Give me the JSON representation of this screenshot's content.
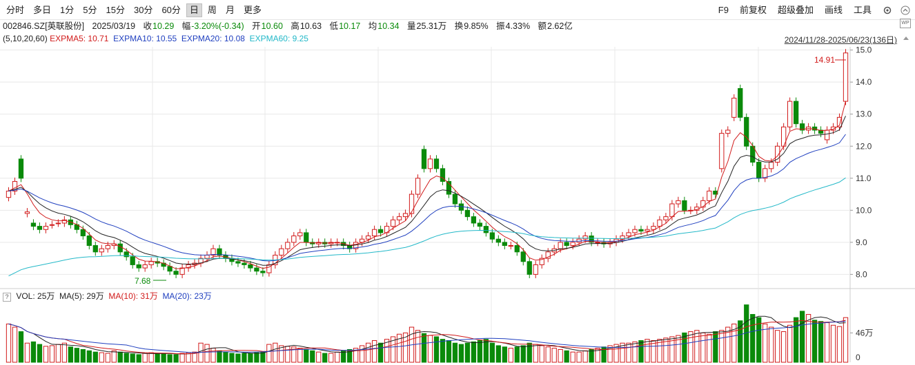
{
  "toolbar": {
    "left": [
      "分时",
      "多日",
      "1分",
      "5分",
      "15分",
      "30分",
      "60分",
      "日",
      "周",
      "月",
      "更多"
    ],
    "active": "日",
    "right": [
      "F9",
      "前复权",
      "超级叠加",
      "画线",
      "工具"
    ]
  },
  "quote": {
    "code": "002846.SZ[英联股份]",
    "date": "2025/03/19",
    "close_label": "收",
    "close": "10.29",
    "change_label": "幅",
    "change": "-3.20%(-0.34)",
    "open_label": "开",
    "open": "10.60",
    "high_label": "高",
    "high": "10.63",
    "low_label": "低",
    "low": "10.17",
    "avg_label": "均",
    "avg": "10.34",
    "vol_label": "量",
    "vol": "25.31万",
    "turnover_label": "换",
    "turnover": "9.85%",
    "amp_label": "振",
    "amp": "4.33%",
    "amount_label": "额",
    "amount": "2.62亿"
  },
  "indicator": {
    "params": "(5,10,20,60)",
    "ma5": "EXPMA5: 10.71",
    "ma10": "EXPMA10: 10.55",
    "ma20": "EXPMA20: 10.08",
    "ma60": "EXPMA60: 9.25"
  },
  "range_label": "2024/11/28-2025/06/23(136日)",
  "wp_label": "WP",
  "colors": {
    "up": "#d11a1a",
    "down": "#0a8a0a",
    "ma5": "#222222",
    "ma10": "#d11a1a",
    "ma20": "#1f3fbf",
    "ma60": "#22b8c8",
    "grid": "#e8e8e8"
  },
  "volume_header": {
    "q": "?",
    "vol": "VOL: 25万",
    "ma5": "MA(5): 29万",
    "ma10": "MA(10): 31万",
    "ma20": "MA(20): 23万"
  },
  "chart_data": {
    "type": "candlestick",
    "y_ticks": [
      "15.0",
      "14.0",
      "13.0",
      "12.0",
      "11.0",
      "10.0",
      "9.0",
      "8.0"
    ],
    "ylim": [
      7.6,
      15.1
    ],
    "vol_ticks": [
      "46万",
      "0"
    ],
    "annotations": {
      "max_label": "14.91",
      "min_label": "7.68"
    },
    "closes": [
      10.6,
      10.9,
      11.0,
      9.95,
      9.5,
      9.4,
      9.5,
      9.55,
      9.6,
      9.7,
      9.55,
      9.4,
      9.2,
      8.9,
      8.7,
      8.8,
      8.9,
      8.95,
      8.7,
      8.55,
      8.3,
      8.2,
      8.3,
      8.4,
      8.35,
      8.25,
      8.1,
      8.0,
      8.2,
      8.3,
      8.35,
      8.5,
      8.6,
      8.8,
      8.6,
      8.5,
      8.4,
      8.35,
      8.3,
      8.2,
      8.1,
      8.05,
      8.3,
      8.6,
      8.8,
      9.0,
      9.2,
      9.3,
      9.0,
      8.95,
      9.0,
      8.95,
      9.0,
      9.0,
      8.9,
      8.8,
      9.0,
      9.1,
      9.2,
      9.4,
      9.3,
      9.5,
      9.7,
      9.8,
      9.9,
      10.5,
      11.0,
      11.3,
      11.6,
      11.3,
      10.9,
      10.5,
      10.2,
      10.0,
      9.8,
      9.6,
      9.5,
      9.3,
      9.1,
      9.0,
      8.9,
      8.9,
      8.7,
      8.4,
      8.0,
      8.3,
      8.5,
      8.7,
      8.8,
      9.0,
      8.9,
      9.0,
      9.1,
      9.2,
      9.0,
      9.0,
      8.95,
      9.0,
      9.1,
      9.2,
      9.3,
      9.4,
      9.35,
      9.4,
      9.5,
      9.7,
      9.8,
      10.2,
      10.3,
      10.0,
      10.0,
      10.1,
      10.3,
      10.6,
      10.5,
      12.4,
      12.5,
      13.5,
      12.9,
      12.0,
      11.5,
      11.0,
      11.3,
      11.5,
      12.0,
      12.6,
      13.4,
      12.7,
      12.5,
      12.6,
      12.5,
      12.4,
      12.5,
      12.6,
      12.9,
      14.91
    ],
    "opens": [
      10.4,
      10.6,
      11.6,
      9.9,
      9.6,
      9.5,
      9.4,
      9.55,
      9.6,
      9.6,
      9.7,
      9.55,
      9.4,
      9.2,
      8.9,
      8.7,
      8.8,
      8.9,
      8.95,
      8.7,
      8.55,
      8.3,
      8.2,
      8.3,
      8.4,
      8.35,
      8.25,
      8.1,
      8.0,
      8.2,
      8.3,
      8.35,
      8.5,
      8.6,
      8.8,
      8.6,
      8.5,
      8.4,
      8.35,
      8.3,
      8.2,
      8.1,
      8.05,
      8.3,
      8.6,
      8.8,
      9.0,
      9.2,
      9.3,
      9.0,
      8.95,
      9.0,
      8.95,
      9.0,
      9.0,
      8.9,
      8.8,
      9.0,
      9.1,
      9.2,
      9.4,
      9.3,
      9.5,
      9.7,
      9.8,
      9.9,
      10.5,
      11.9,
      11.3,
      11.6,
      11.3,
      10.9,
      10.5,
      10.2,
      10.0,
      9.8,
      9.6,
      9.5,
      9.3,
      9.1,
      9.0,
      8.9,
      8.9,
      8.7,
      8.4,
      8.0,
      8.3,
      8.5,
      8.7,
      8.8,
      9.0,
      8.9,
      9.0,
      9.1,
      9.2,
      9.0,
      9.0,
      8.95,
      9.0,
      9.1,
      9.2,
      9.3,
      9.4,
      9.35,
      9.4,
      9.5,
      9.7,
      9.8,
      10.2,
      10.3,
      10.0,
      10.0,
      10.1,
      10.3,
      10.6,
      11.3,
      12.4,
      12.9,
      13.8,
      12.9,
      12.0,
      11.5,
      11.0,
      11.3,
      11.5,
      12.0,
      12.6,
      13.4,
      12.7,
      12.5,
      12.6,
      12.5,
      12.2,
      12.5,
      12.6,
      13.4
    ],
    "volumes": [
      60,
      55,
      48,
      30,
      32,
      28,
      25,
      26,
      28,
      30,
      24,
      22,
      20,
      18,
      16,
      15,
      14,
      18,
      16,
      14,
      13,
      12,
      14,
      15,
      14,
      13,
      12,
      12,
      14,
      15,
      16,
      30,
      28,
      22,
      18,
      16,
      14,
      13,
      14,
      14,
      15,
      16,
      28,
      30,
      26,
      25,
      24,
      22,
      20,
      18,
      16,
      14,
      14,
      16,
      18,
      20,
      22,
      26,
      30,
      34,
      30,
      36,
      40,
      44,
      46,
      55,
      50,
      45,
      42,
      40,
      36,
      34,
      30,
      28,
      30,
      32,
      34,
      36,
      30,
      26,
      24,
      22,
      24,
      26,
      30,
      28,
      26,
      24,
      22,
      20,
      18,
      16,
      16,
      18,
      20,
      22,
      24,
      26,
      28,
      30,
      30,
      32,
      34,
      36,
      34,
      36,
      38,
      40,
      42,
      46,
      48,
      50,
      46,
      44,
      48,
      50,
      55,
      60,
      65,
      90,
      75,
      70,
      60,
      55,
      50,
      48,
      58,
      70,
      80,
      75,
      66,
      64,
      62,
      58,
      56,
      70
    ]
  }
}
